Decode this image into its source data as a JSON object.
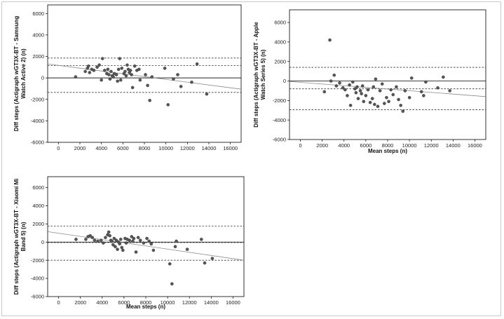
{
  "chart_data": [
    {
      "type": "scatter",
      "title": "",
      "xlabel": "",
      "ylabel": "Diff steps (Actigraph wGT3X-BT - Samsung Watch Active 2) (n)",
      "ylabel_lines": [
        "Diff steps (Actigraph wGT3X-BT - Samsung",
        "Watch Active 2) (n)"
      ],
      "xlim": [
        -1000,
        17000
      ],
      "ylim": [
        -6000,
        6800
      ],
      "x_ticks": [
        0,
        2000,
        4000,
        6000,
        8000,
        10000,
        12000,
        14000,
        16000
      ],
      "y_ticks": [
        -6000,
        -4000,
        -2000,
        0,
        2000,
        4000,
        6000
      ],
      "grid": false,
      "point_color": "#555555",
      "reference_lines": {
        "zero": 0,
        "mean_bias": 1150,
        "upper_loa": 1850,
        "lower_loa": -1350
      },
      "regression_line": {
        "x": [
          -1000,
          17000
        ],
        "y": [
          1300,
          -1050
        ]
      },
      "x": [
        1600,
        2500,
        2700,
        2800,
        2900,
        3100,
        3300,
        3600,
        3800,
        4000,
        4100,
        4300,
        4500,
        4600,
        4700,
        4800,
        4900,
        5000,
        5100,
        5200,
        5400,
        5500,
        5600,
        5700,
        5800,
        5900,
        6100,
        6200,
        6300,
        6400,
        6500,
        6600,
        6700,
        6800,
        6900,
        7100,
        7300,
        7500,
        7600,
        8100,
        8300,
        8500,
        8700,
        9900,
        10200,
        10700,
        11100,
        11400,
        12400,
        12900,
        13800
      ],
      "y": [
        100,
        600,
        900,
        1100,
        500,
        800,
        700,
        1000,
        1200,
        -200,
        1800,
        700,
        400,
        800,
        300,
        -100,
        600,
        200,
        100,
        400,
        300,
        -300,
        800,
        1800,
        -200,
        900,
        400,
        600,
        200,
        1200,
        800,
        500,
        700,
        300,
        -900,
        1100,
        700,
        800,
        -200,
        300,
        -700,
        -2100,
        100,
        900,
        -2500,
        -100,
        300,
        -800,
        -400,
        1300,
        -1500
      ]
    },
    {
      "type": "scatter",
      "title": "",
      "xlabel": "Mean steps (n)",
      "ylabel": "Diff steps (Actigraph wGT3X-BT - Apple Watch Series 5) (n)",
      "ylabel_lines": [
        "Diff steps (Actigraph wGT3X-BT - Apple",
        "Watch Series 5) (n)"
      ],
      "xlim": [
        -1000,
        17000
      ],
      "ylim": [
        -6000,
        7300
      ],
      "x_ticks": [
        0,
        2000,
        4000,
        6000,
        8000,
        10000,
        12000,
        14000,
        16000
      ],
      "y_ticks": [
        -6000,
        -4000,
        -2000,
        0,
        2000,
        4000,
        6000
      ],
      "grid": false,
      "point_color": "#555555",
      "reference_lines": {
        "zero": 0,
        "mean_bias": -800,
        "upper_loa": 1400,
        "lower_loa": -2950
      },
      "regression_line": {
        "x": [
          -1000,
          17000
        ],
        "y": [
          -50,
          -1600
        ]
      },
      "x": [
        2200,
        2700,
        2800,
        3100,
        3300,
        3600,
        3900,
        4100,
        4300,
        4500,
        4600,
        4800,
        5000,
        5100,
        5200,
        5300,
        5500,
        5600,
        5700,
        5800,
        6000,
        6200,
        6400,
        6600,
        6700,
        6800,
        6900,
        7100,
        7300,
        7500,
        7700,
        7900,
        8100,
        8300,
        8500,
        8800,
        9000,
        9200,
        9400,
        9600,
        10000,
        10200,
        11100,
        11300,
        11500,
        12600,
        13100,
        13700
      ],
      "y": [
        -1100,
        4200,
        0,
        600,
        -500,
        -200,
        -700,
        -900,
        -1500,
        -400,
        -2500,
        -100,
        -800,
        -1200,
        -600,
        -1800,
        -1000,
        -1300,
        -500,
        -2100,
        -1500,
        -900,
        -2200,
        -1800,
        -600,
        -2400,
        200,
        -2600,
        -1000,
        -300,
        -2300,
        -1700,
        -2100,
        -900,
        -1400,
        -600,
        -1900,
        -2500,
        -3100,
        -1000,
        -1700,
        300,
        -1100,
        -1500,
        -100,
        -700,
        400,
        -1000
      ]
    },
    {
      "type": "scatter",
      "title": "",
      "xlabel": "Mean steps (n)",
      "ylabel": "Diff steps (Actigraph wGT3X-BT - Xiaomi Mi Band 5) (n)",
      "ylabel_lines": [
        "Diff steps (Actigraph wGT3X-BT - Xiaomi Mi",
        "Band 5) (n)"
      ],
      "xlim": [
        -1000,
        17000
      ],
      "ylim": [
        -6000,
        7200
      ],
      "x_ticks": [
        0,
        2000,
        4000,
        6000,
        8000,
        10000,
        12000,
        14000,
        16000
      ],
      "y_ticks": [
        -6000,
        -4000,
        -2000,
        0,
        2000,
        4000,
        6000
      ],
      "grid": false,
      "point_color": "#555555",
      "reference_lines": {
        "zero": 0,
        "mean_bias": -50,
        "upper_loa": 1750,
        "lower_loa": -2000
      },
      "regression_line": {
        "x": [
          -1000,
          17000
        ],
        "y": [
          1150,
          -2000
        ]
      },
      "x": [
        1600,
        2500,
        2700,
        2900,
        3100,
        3300,
        3600,
        3900,
        4100,
        4300,
        4500,
        4600,
        4700,
        4800,
        4900,
        5000,
        5100,
        5200,
        5300,
        5400,
        5500,
        5600,
        5700,
        5800,
        5900,
        6100,
        6200,
        6300,
        6500,
        6700,
        6800,
        6900,
        7100,
        7300,
        7500,
        7800,
        8100,
        8300,
        8500,
        8700,
        10200,
        10400,
        10700,
        10800,
        11800,
        13100,
        13400,
        14100
      ],
      "y": [
        300,
        300,
        600,
        700,
        500,
        200,
        100,
        200,
        -100,
        500,
        800,
        1100,
        700,
        200,
        100,
        -300,
        400,
        -500,
        200,
        -800,
        0,
        -200,
        300,
        -600,
        -900,
        400,
        -100,
        300,
        200,
        600,
        100,
        400,
        -1100,
        500,
        200,
        -100,
        400,
        100,
        -200,
        -900,
        -2400,
        -4600,
        -500,
        100,
        -800,
        300,
        -2300,
        -1800
      ]
    }
  ]
}
